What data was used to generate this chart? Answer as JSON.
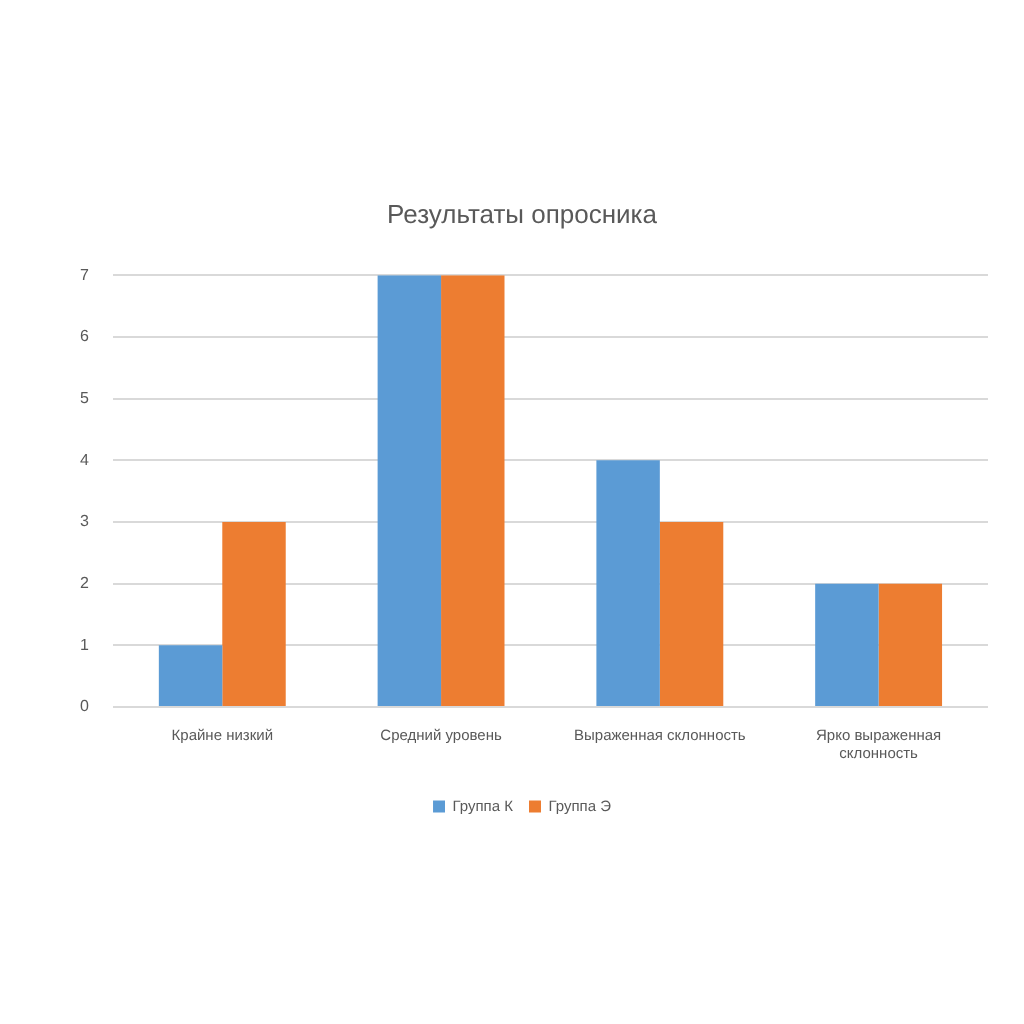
{
  "chart_data": {
    "type": "bar",
    "title": "Результаты опросника",
    "categories": [
      "Крайне низкий",
      "Средний уровень",
      "Выраженная склонность",
      "Ярко выраженная склонность"
    ],
    "series": [
      {
        "name": "Группа К",
        "color": "#5b9bd5",
        "values": [
          1,
          7,
          4,
          2
        ]
      },
      {
        "name": "Группа Э",
        "color": "#ed7d31",
        "values": [
          3,
          7,
          3,
          2
        ]
      }
    ],
    "ylim": [
      0,
      7
    ],
    "yticks": [
      0,
      1,
      2,
      3,
      4,
      5,
      6,
      7
    ],
    "grid": "y",
    "legend": "bottom"
  }
}
